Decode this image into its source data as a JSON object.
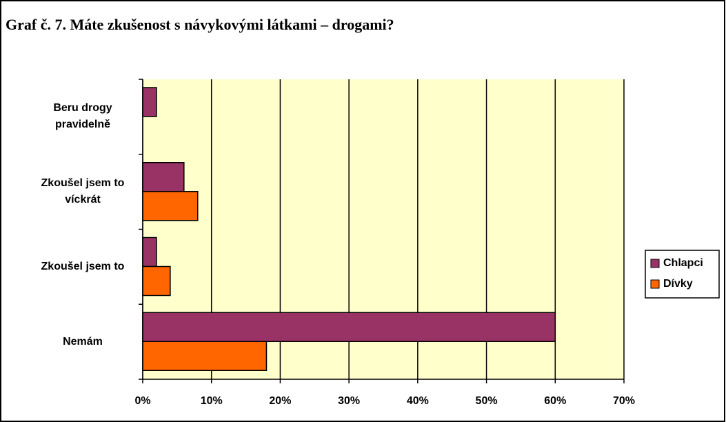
{
  "chart_data": {
    "type": "hbar",
    "title": "Graf č. 7. Máte zkušenost s návykovými látkami – drogami?",
    "categories": [
      "Beru drogy pravidelně",
      "Zkoušel jsem to víckrát",
      "Zkoušel jsem to",
      "Nemám"
    ],
    "series": [
      {
        "name": "Chlapci",
        "color": "#993366",
        "values": [
          2,
          6,
          2,
          60
        ]
      },
      {
        "name": "Dívky",
        "color": "#ff6600",
        "values": [
          0,
          8,
          4,
          18
        ]
      }
    ],
    "xlim": [
      0,
      70
    ],
    "xticks": [
      {
        "value": 0,
        "label": "0%"
      },
      {
        "value": 10,
        "label": "10%"
      },
      {
        "value": 20,
        "label": "20%"
      },
      {
        "value": 30,
        "label": "30%"
      },
      {
        "value": 40,
        "label": "40%"
      },
      {
        "value": 50,
        "label": "50%"
      },
      {
        "value": 60,
        "label": "60%"
      },
      {
        "value": 70,
        "label": "70%"
      }
    ],
    "grid": true,
    "legend": "right",
    "background": "#ffffcc"
  }
}
